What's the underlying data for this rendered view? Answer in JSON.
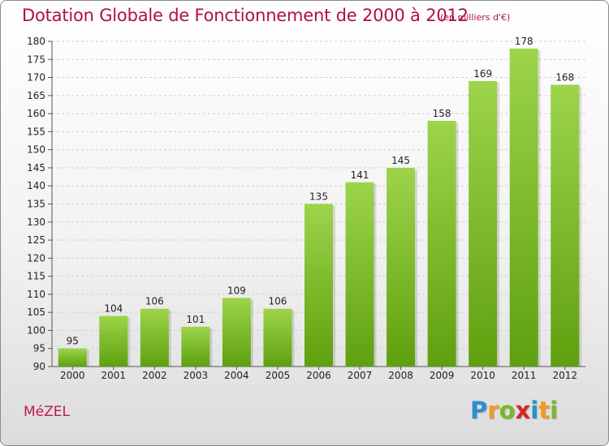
{
  "title": "Dotation Globale de Fonctionnement de 2000 à 2012",
  "unit_note": "(en milliers d'€)",
  "town": "MéZEL",
  "logo": {
    "letters": [
      "P",
      "r",
      "o",
      "x",
      "i",
      "t",
      "i"
    ],
    "colors": [
      "#2a8fd0",
      "#f29a1f",
      "#7ab828",
      "#d6262a",
      "#2a8fd0",
      "#f29a1f",
      "#7ab828"
    ]
  },
  "colors": {
    "bar_light": "#9dd44a",
    "bar_dark": "#5fa00f",
    "title": "#b0103c"
  },
  "chart_data": {
    "type": "bar",
    "title": "Dotation Globale de Fonctionnement de 2000 à 2012",
    "xlabel": "",
    "ylabel": "",
    "ylim": [
      90,
      180
    ],
    "yticks": [
      90,
      95,
      100,
      105,
      110,
      115,
      120,
      125,
      130,
      135,
      140,
      145,
      150,
      155,
      160,
      165,
      170,
      175,
      180
    ],
    "grid": true,
    "categories": [
      "2000",
      "2001",
      "2002",
      "2003",
      "2004",
      "2005",
      "2006",
      "2007",
      "2008",
      "2009",
      "2010",
      "2011",
      "2012"
    ],
    "values": [
      95,
      104,
      106,
      101,
      109,
      106,
      135,
      141,
      145,
      158,
      169,
      178,
      168
    ]
  }
}
